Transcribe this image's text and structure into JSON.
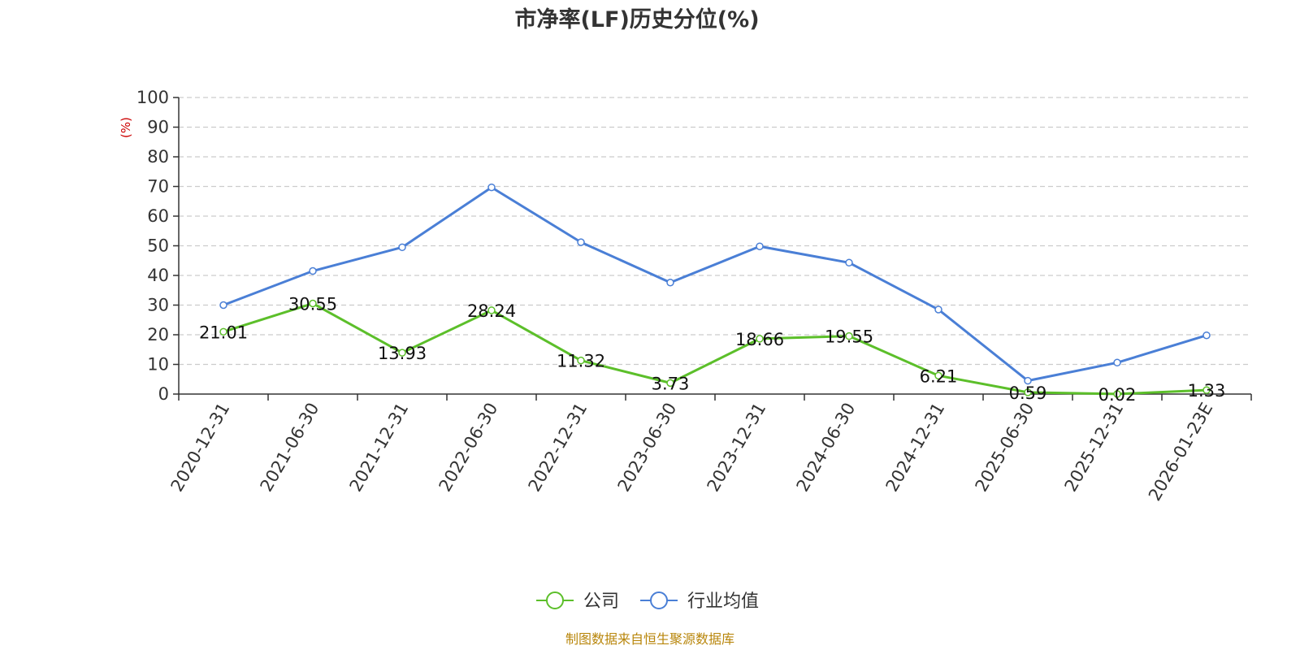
{
  "chart_data": {
    "type": "line",
    "title": "市净率(LF)历史分位(%)",
    "ylabel": "(%)",
    "xlabel": "",
    "ylim": [
      0,
      100
    ],
    "yticks": [
      0,
      10,
      20,
      30,
      40,
      50,
      60,
      70,
      80,
      90,
      100
    ],
    "grid": true,
    "legend_position": "bottom",
    "categories": [
      "2020-12-31",
      "2021-06-30",
      "2021-12-31",
      "2022-06-30",
      "2022-12-31",
      "2023-06-30",
      "2023-12-31",
      "2024-06-30",
      "2024-12-31",
      "2025-06-30",
      "2025-12-31",
      "2026-01-23E"
    ],
    "series": [
      {
        "name": "公司",
        "color": "#5cbf2a",
        "values": [
          21.01,
          30.55,
          13.93,
          28.24,
          11.32,
          3.73,
          18.66,
          19.55,
          6.21,
          0.59,
          0.02,
          1.33
        ],
        "labels": [
          "21.01",
          "30.55",
          "13.93",
          "28.24",
          "11.32",
          "3.73",
          "18.66",
          "19.55",
          "6.21",
          "0.59",
          "0.02",
          "1.33"
        ]
      },
      {
        "name": "行业均值",
        "color": "#4a7fd6",
        "values": [
          30.0,
          41.5,
          49.5,
          69.7,
          51.2,
          37.6,
          49.8,
          44.3,
          28.5,
          4.5,
          10.6,
          19.8
        ]
      }
    ]
  },
  "source_note": "制图数据来自恒生聚源数据库"
}
